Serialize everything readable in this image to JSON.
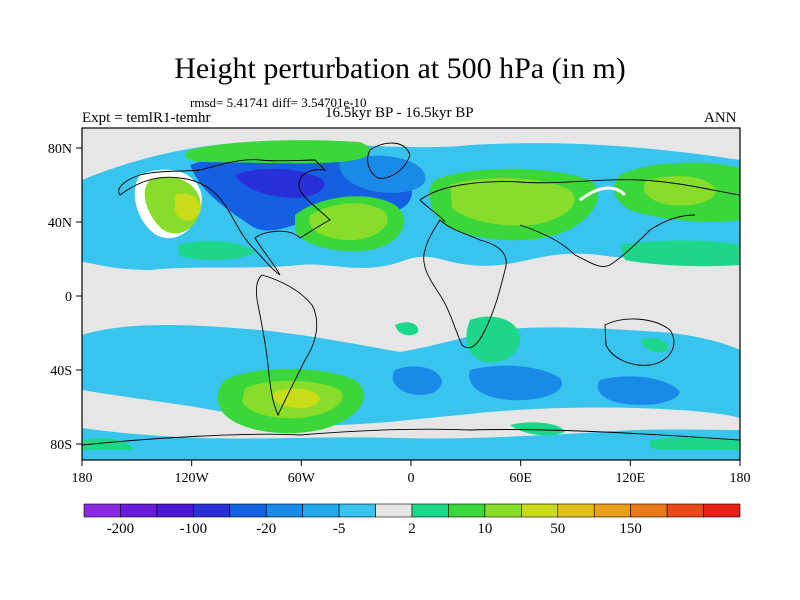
{
  "title": "Height perturbation at 500 hPa (in m)",
  "stats": "rmsd= 5.41741 diff= 3.54701e-10",
  "experiment": "Expt = temlR1-temhr",
  "period": "16.5kyr BP - 16.5kyr BP",
  "season": "ANN",
  "lat_ticks": [
    "80N",
    "40N",
    "0",
    "40S",
    "80S"
  ],
  "lon_ticks": [
    "180",
    "120W",
    "60W",
    "0",
    "60E",
    "120E",
    "180"
  ],
  "colorbar": {
    "colors": [
      "#8a2be2",
      "#6a1bd8",
      "#4b19d2",
      "#2a30d8",
      "#1560e0",
      "#1a8ae8",
      "#24a8ec",
      "#39c4ee",
      "#e6e6e6",
      "#1dd68a",
      "#3ad63a",
      "#88dc2a",
      "#c8dc1a",
      "#e2c21a",
      "#e8a01a",
      "#e87818",
      "#e84a18",
      "#e81e18"
    ],
    "labels": [
      "-200",
      "-100",
      "-20",
      "-5",
      "2",
      "10",
      "50",
      "150"
    ]
  },
  "colors": {
    "background": "#e6e6e6",
    "coast": "#000000"
  }
}
